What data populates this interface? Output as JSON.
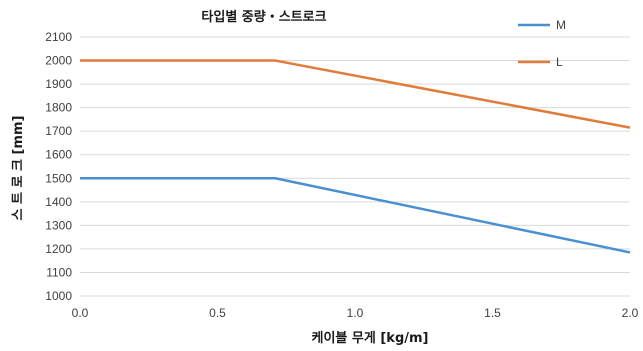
{
  "chart_data": {
    "type": "line",
    "title": "타입별 중량・스트로크",
    "xlabel": "케이블 무게 [kg/m]",
    "ylabel": "스 트 로 크 [mm]",
    "xlim": [
      0,
      2.0
    ],
    "ylim": [
      1000,
      2100
    ],
    "xticks": [
      "0.0",
      "0.5",
      "1.0",
      "1.5",
      "2.0"
    ],
    "xtick_values": [
      0,
      0.5,
      1.0,
      1.5,
      2.0
    ],
    "yticks": [
      "1000",
      "1100",
      "1200",
      "1300",
      "1400",
      "1500",
      "1600",
      "1700",
      "1800",
      "1900",
      "2000",
      "2100"
    ],
    "ytick_values": [
      1000,
      1100,
      1200,
      1300,
      1400,
      1500,
      1600,
      1700,
      1800,
      1900,
      2000,
      2100
    ],
    "grid": "horizontal",
    "legend_position": "top-right",
    "series": [
      {
        "name": "M",
        "color": "#4a90d0",
        "x": [
          0,
          0.71,
          2.0
        ],
        "y": [
          1500,
          1500,
          1185
        ]
      },
      {
        "name": "L",
        "color": "#e07b39",
        "x": [
          0,
          0.71,
          2.0
        ],
        "y": [
          2000,
          2000,
          1715
        ]
      }
    ]
  }
}
